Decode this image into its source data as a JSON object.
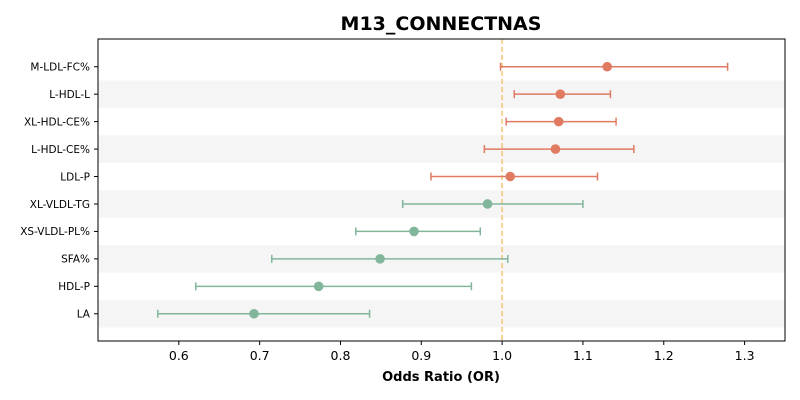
{
  "chart_data": {
    "type": "forest",
    "title": "M13_CONNECTNAS",
    "xlabel": "Odds Ratio (OR)",
    "ylabel": "",
    "xlim": [
      0.5,
      1.35
    ],
    "xticks": [
      "0.6",
      "0.7",
      "0.8",
      "0.9",
      "1.0",
      "1.1",
      "1.2",
      "1.3"
    ],
    "reference_line": 1.0,
    "reference_line_style": "dashed",
    "row_shading": "alternating",
    "grid": false,
    "colors": {
      "risk": "#e07b62",
      "protective": "#82b69b",
      "reference_line": "#f2c77e",
      "row_band": "#f5f5f5",
      "axis": "#000000"
    },
    "rows": [
      {
        "label": "M-LDL-FC%",
        "or": 1.13,
        "ci_low": 0.998,
        "ci_high": 1.279
      },
      {
        "label": "L-HDL-L",
        "or": 1.072,
        "ci_low": 1.015,
        "ci_high": 1.134
      },
      {
        "label": "XL-HDL-CE%",
        "or": 1.07,
        "ci_low": 1.005,
        "ci_high": 1.141
      },
      {
        "label": "L-HDL-CE%",
        "or": 1.066,
        "ci_low": 0.978,
        "ci_high": 1.163
      },
      {
        "label": "LDL-P",
        "or": 1.01,
        "ci_low": 0.912,
        "ci_high": 1.118
      },
      {
        "label": "XL-VLDL-TG",
        "or": 0.982,
        "ci_low": 0.877,
        "ci_high": 1.1
      },
      {
        "label": "XS-VLDL-PL%",
        "or": 0.891,
        "ci_low": 0.819,
        "ci_high": 0.973
      },
      {
        "label": "SFA%",
        "or": 0.849,
        "ci_low": 0.715,
        "ci_high": 1.007
      },
      {
        "label": "HDL-P",
        "or": 0.773,
        "ci_low": 0.621,
        "ci_high": 0.962
      },
      {
        "label": "LA",
        "or": 0.693,
        "ci_low": 0.574,
        "ci_high": 0.836
      }
    ]
  }
}
